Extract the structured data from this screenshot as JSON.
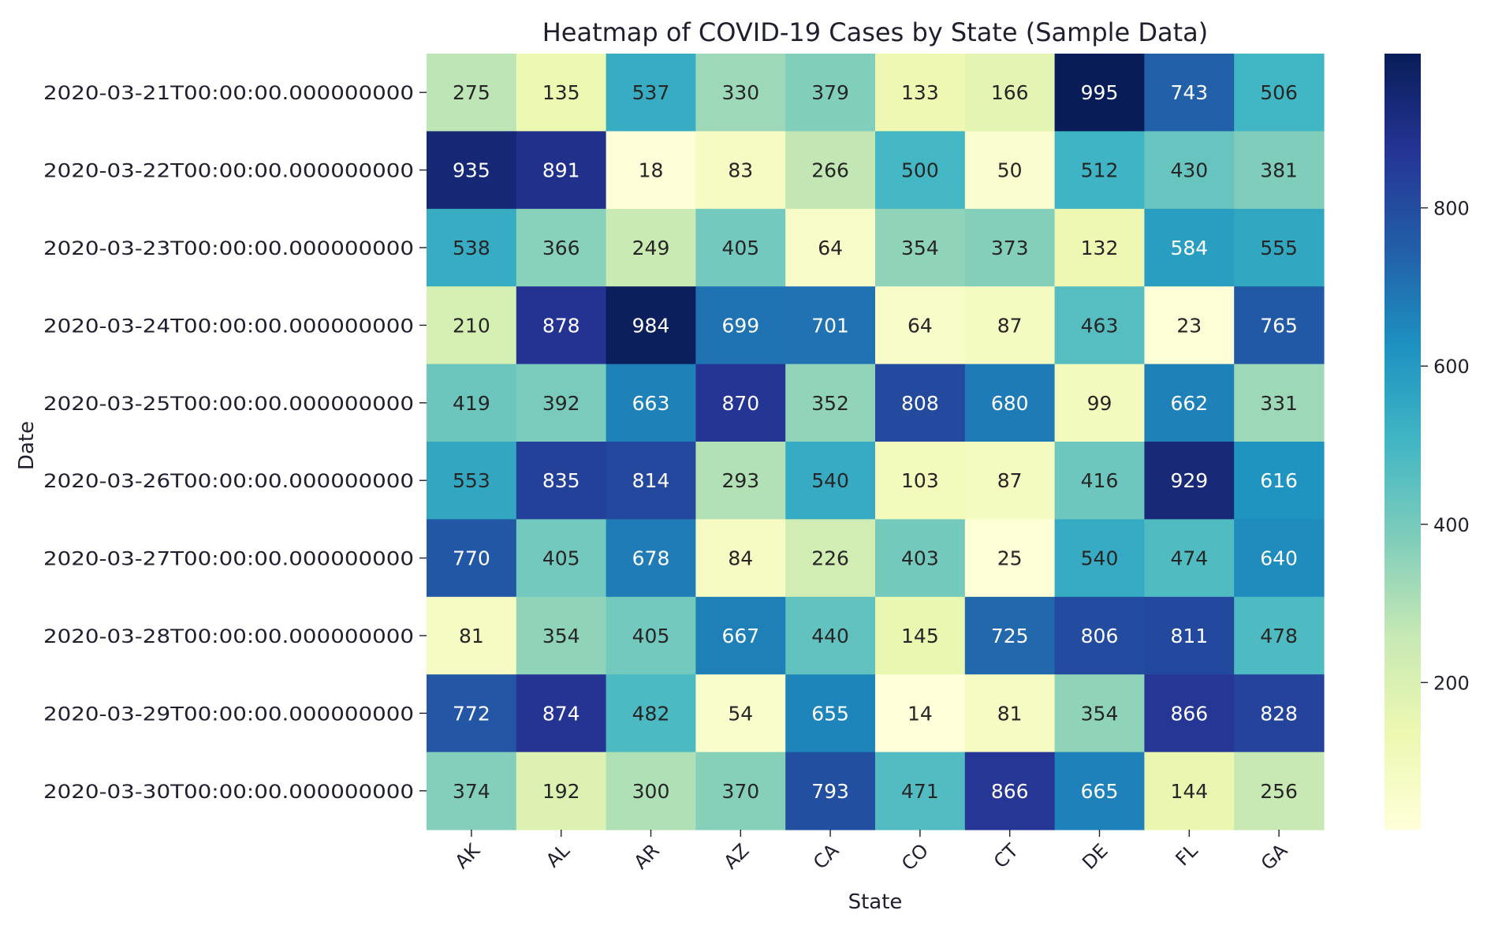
{
  "chart_data": {
    "type": "heatmap",
    "title": "Heatmap of COVID-19 Cases by State (Sample Data)",
    "xlabel": "State",
    "ylabel": "Date",
    "x_categories": [
      "AK",
      "AL",
      "AR",
      "AZ",
      "CA",
      "CO",
      "CT",
      "DE",
      "FL",
      "GA"
    ],
    "y_categories": [
      "2020-03-21T00:00:00.000000000",
      "2020-03-22T00:00:00.000000000",
      "2020-03-23T00:00:00.000000000",
      "2020-03-24T00:00:00.000000000",
      "2020-03-25T00:00:00.000000000",
      "2020-03-26T00:00:00.000000000",
      "2020-03-27T00:00:00.000000000",
      "2020-03-28T00:00:00.000000000",
      "2020-03-29T00:00:00.000000000",
      "2020-03-30T00:00:00.000000000"
    ],
    "values": [
      [
        275,
        135,
        537,
        330,
        379,
        133,
        166,
        995,
        743,
        506
      ],
      [
        935,
        891,
        18,
        83,
        266,
        500,
        50,
        512,
        430,
        381
      ],
      [
        538,
        366,
        249,
        405,
        64,
        354,
        373,
        132,
        584,
        555
      ],
      [
        210,
        878,
        984,
        699,
        701,
        64,
        87,
        463,
        23,
        765
      ],
      [
        419,
        392,
        663,
        870,
        352,
        808,
        680,
        99,
        662,
        331
      ],
      [
        553,
        835,
        814,
        293,
        540,
        103,
        87,
        416,
        929,
        616
      ],
      [
        770,
        405,
        678,
        84,
        226,
        403,
        25,
        540,
        474,
        640
      ],
      [
        81,
        354,
        405,
        667,
        440,
        145,
        725,
        806,
        811,
        478
      ],
      [
        772,
        874,
        482,
        54,
        655,
        14,
        81,
        354,
        866,
        828
      ],
      [
        374,
        192,
        300,
        370,
        793,
        471,
        866,
        665,
        144,
        256
      ]
    ],
    "colorscale": "YlGnBu",
    "vmin": 14,
    "vmax": 995,
    "colorbar_ticks": [
      200,
      400,
      600,
      800
    ],
    "annotated": true
  }
}
